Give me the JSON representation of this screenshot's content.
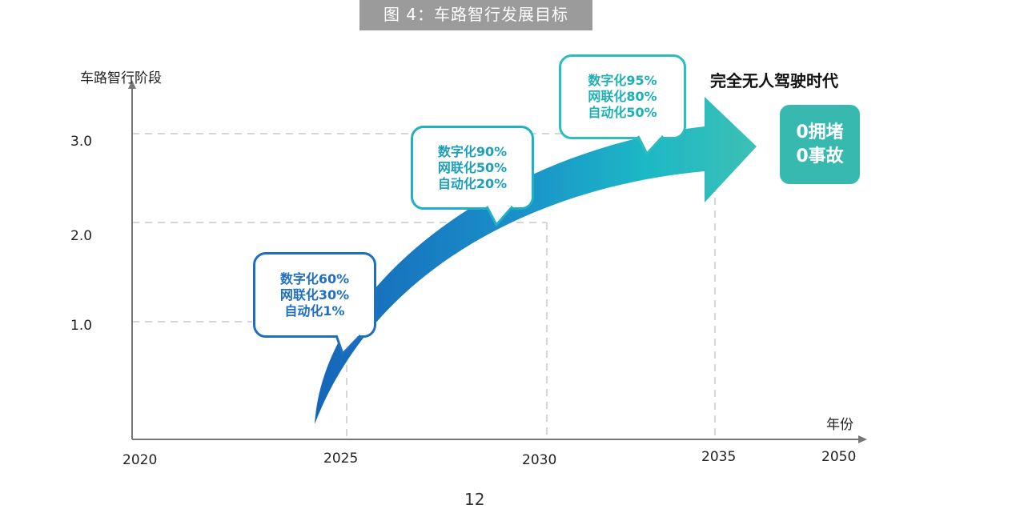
{
  "caption": "图 4：车路智行发展目标",
  "y_axis_title": "车路智行阶段",
  "x_axis_title": "年份",
  "y_ticks": [
    "1.0",
    "2.0",
    "3.0"
  ],
  "x_ticks": [
    "2020",
    "2025",
    "2030",
    "2035",
    "2050"
  ],
  "stages": [
    {
      "lines": [
        "数字化60%",
        "网联化30%",
        "自动化1%"
      ]
    },
    {
      "lines": [
        "数字化90%",
        "网联化50%",
        "自动化20%"
      ]
    },
    {
      "lines": [
        "数字化95%",
        "网联化80%",
        "自动化50%"
      ]
    }
  ],
  "era_title": "完全无人驾驶时代",
  "goal": {
    "line1": "0拥堵",
    "line2": "0事故"
  },
  "page_number": "12",
  "colors": {
    "arrow_start": "#1565b8",
    "arrow_end": "#3cc0b4",
    "goal_box": "#38b9b0",
    "caption_bg": "#9b9b9b"
  }
}
